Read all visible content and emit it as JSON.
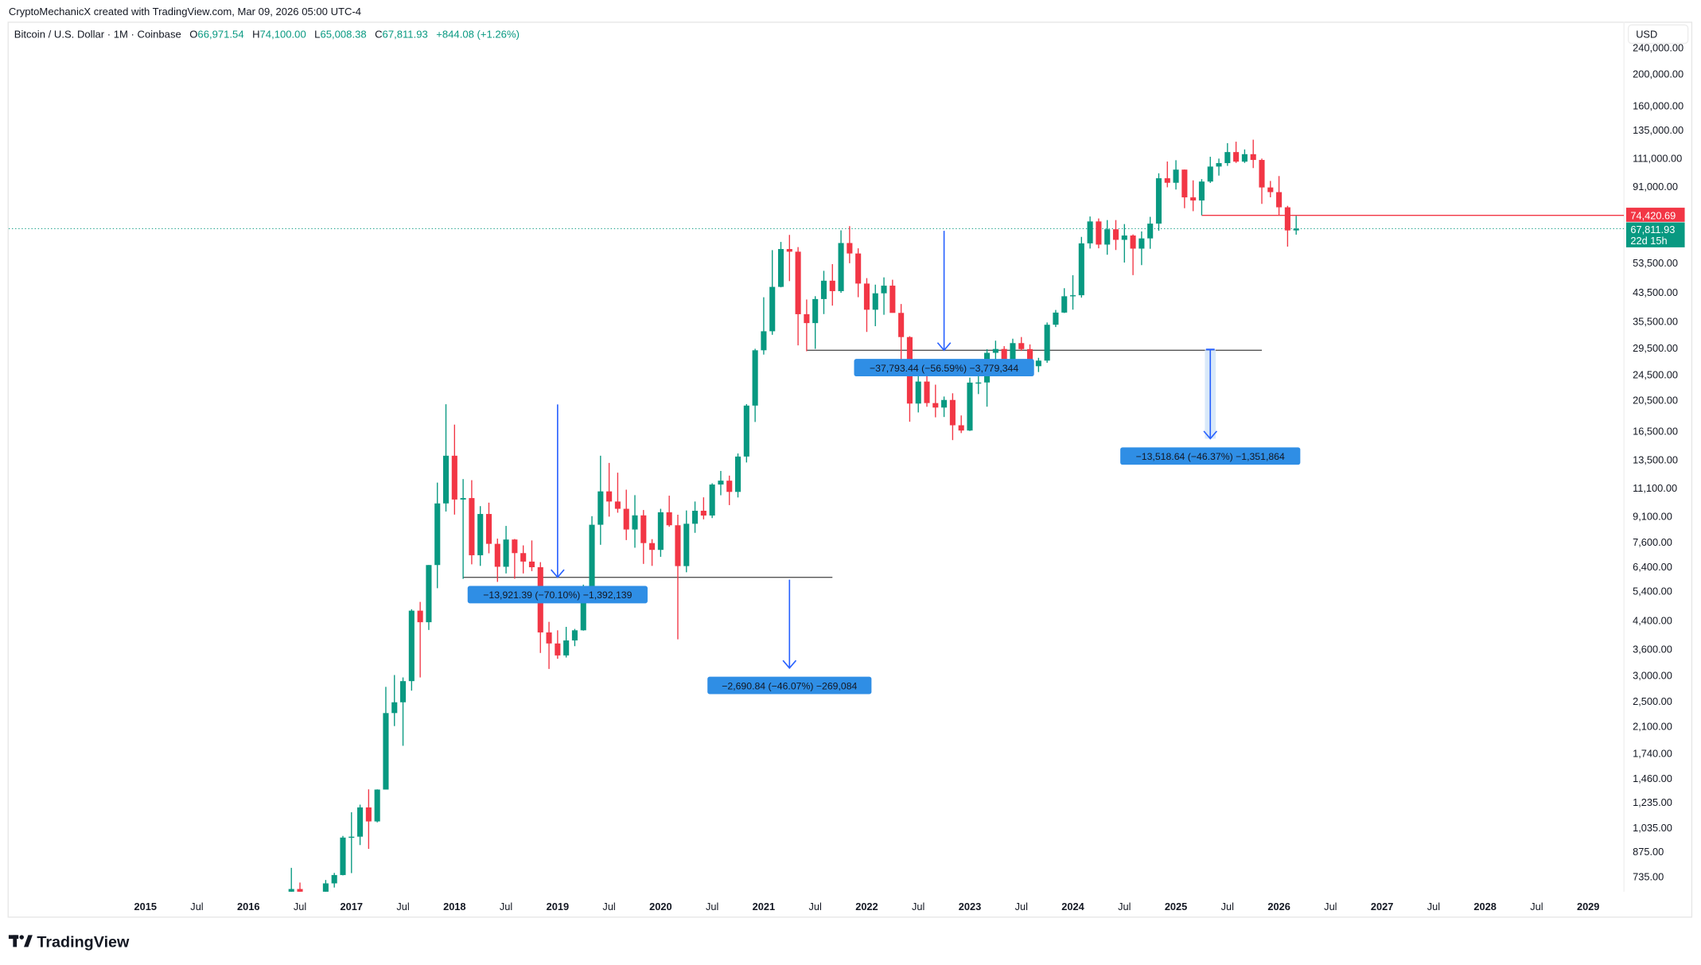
{
  "header": {
    "credit": "CryptoMechanicX created with TradingView.com, Mar 09, 2026 05:00 UTC-4",
    "symbol": "Bitcoin / U.S. Dollar · 1M · Coinbase",
    "o_label": "O",
    "o_value": "66,971.54",
    "h_label": "H",
    "h_value": "74,100.00",
    "l_label": "L",
    "l_value": "65,008.38",
    "c_label": "C",
    "c_value": "67,811.93",
    "change": "+844.08 (+1.26%)"
  },
  "price_axis": {
    "currency": "USD",
    "marker_red": "74,420.69",
    "marker_green": "67,811.93",
    "countdown": "22d 15h"
  },
  "footer": {
    "logo": "TradingView"
  },
  "colors": {
    "up": "#089981",
    "down": "#F23645",
    "arrow": "#2962FF",
    "label_bg": "#2F8EE5",
    "band": "#CFE3F8"
  },
  "chart_data": {
    "type": "candlestick",
    "scale": "log",
    "interval": "1M",
    "start": "2016-01",
    "candles": [
      [
        430,
        462,
        350,
        368
      ],
      [
        368,
        448,
        365,
        437
      ],
      [
        437,
        440,
        394,
        416
      ],
      [
        416,
        467,
        412,
        448
      ],
      [
        448,
        554,
        437,
        531
      ],
      [
        531,
        780,
        525,
        673
      ],
      [
        673,
        704,
        468,
        624
      ],
      [
        624,
        626,
        530,
        575
      ],
      [
        575,
        628,
        570,
        609
      ],
      [
        609,
        717,
        604,
        700
      ],
      [
        700,
        753,
        680,
        742
      ],
      [
        742,
        975,
        740,
        964
      ],
      [
        964,
        1150,
        752,
        970
      ],
      [
        970,
        1213,
        915,
        1190
      ],
      [
        1190,
        1350,
        891,
        1079
      ],
      [
        1079,
        1350,
        1072,
        1348
      ],
      [
        1348,
        2763,
        1348,
        2300
      ],
      [
        2300,
        3000,
        2100,
        2480
      ],
      [
        2480,
        2950,
        1830,
        2875
      ],
      [
        2875,
        4750,
        2690,
        4703
      ],
      [
        4703,
        5000,
        2950,
        4338
      ],
      [
        4338,
        6470,
        4110,
        6468
      ],
      [
        6468,
        11500,
        5500,
        9947
      ],
      [
        9947,
        19891,
        9400,
        13880
      ],
      [
        13880,
        17250,
        9200,
        10221
      ],
      [
        10221,
        11790,
        5873,
        10325
      ],
      [
        10325,
        11700,
        6500,
        6926
      ],
      [
        6926,
        9760,
        6430,
        9240
      ],
      [
        9240,
        10000,
        7020,
        7500
      ],
      [
        7500,
        7780,
        5750,
        6390
      ],
      [
        6390,
        8500,
        6100,
        7730
      ],
      [
        7730,
        7760,
        5880,
        7030
      ],
      [
        7030,
        7420,
        6100,
        6626
      ],
      [
        6626,
        7680,
        6200,
        6370
      ],
      [
        6370,
        6600,
        3500,
        4040
      ],
      [
        4040,
        4350,
        3130,
        3740
      ],
      [
        3740,
        4100,
        3360,
        3440
      ],
      [
        3440,
        4200,
        3390,
        3820
      ],
      [
        3820,
        4140,
        3670,
        4100
      ],
      [
        4100,
        5640,
        4090,
        5330
      ],
      [
        5330,
        9100,
        5320,
        8570
      ],
      [
        8570,
        13880,
        7450,
        10820
      ],
      [
        10820,
        13200,
        9070,
        10080
      ],
      [
        10080,
        12330,
        9320,
        9580
      ],
      [
        9580,
        10950,
        7700,
        8290
      ],
      [
        8290,
        10540,
        7300,
        9150
      ],
      [
        9150,
        9500,
        6520,
        7540
      ],
      [
        7540,
        7750,
        6430,
        7190
      ],
      [
        7190,
        9580,
        6850,
        9350
      ],
      [
        9350,
        10500,
        8450,
        8540
      ],
      [
        8540,
        9190,
        3850,
        6420
      ],
      [
        6420,
        9470,
        6150,
        8630
      ],
      [
        8630,
        10080,
        8100,
        9450
      ],
      [
        9450,
        10380,
        8900,
        9140
      ],
      [
        9140,
        11450,
        8980,
        11350
      ],
      [
        11350,
        12480,
        10530,
        11660
      ],
      [
        11660,
        12080,
        9830,
        10780
      ],
      [
        10780,
        14100,
        10370,
        13800
      ],
      [
        13800,
        19900,
        13240,
        19700
      ],
      [
        19700,
        29300,
        17570,
        28990
      ],
      [
        28990,
        41990,
        28130,
        33110
      ],
      [
        33110,
        58350,
        32300,
        45140
      ],
      [
        45140,
        61790,
        45000,
        58800
      ],
      [
        58800,
        64900,
        47000,
        57720
      ],
      [
        57720,
        59600,
        30000,
        37300
      ],
      [
        37300,
        41330,
        28800,
        35050
      ],
      [
        35050,
        42300,
        29280,
        41460
      ],
      [
        41460,
        50500,
        37330,
        47130
      ],
      [
        47130,
        52920,
        39600,
        43820
      ],
      [
        43820,
        67000,
        43300,
        61320
      ],
      [
        61320,
        69000,
        53250,
        57000
      ],
      [
        57000,
        59100,
        42000,
        46200
      ],
      [
        46200,
        47990,
        32950,
        38480
      ],
      [
        38480,
        45850,
        34300,
        43160
      ],
      [
        43160,
        48240,
        37150,
        45530
      ],
      [
        45530,
        47450,
        37700,
        37640
      ],
      [
        37640,
        40050,
        26700,
        31790
      ],
      [
        31790,
        31980,
        17600,
        19980
      ],
      [
        19980,
        24670,
        18780,
        23300
      ],
      [
        23300,
        25200,
        19540,
        20050
      ],
      [
        20050,
        22800,
        18150,
        19430
      ],
      [
        19430,
        20990,
        18190,
        20490
      ],
      [
        20490,
        21470,
        15480,
        17170
      ],
      [
        17170,
        18390,
        16260,
        16550
      ],
      [
        16550,
        23960,
        16500,
        23130
      ],
      [
        23130,
        25250,
        21350,
        23150
      ],
      [
        23150,
        29200,
        19550,
        28480
      ],
      [
        28480,
        31000,
        26940,
        29250
      ],
      [
        29250,
        29840,
        25810,
        27220
      ],
      [
        27220,
        31430,
        24750,
        30480
      ],
      [
        30480,
        31800,
        28850,
        29230
      ],
      [
        29230,
        30200,
        25170,
        25940
      ],
      [
        25940,
        27500,
        24900,
        26970
      ],
      [
        26970,
        35200,
        26560,
        34650
      ],
      [
        34650,
        38420,
        34100,
        37720
      ],
      [
        37720,
        44730,
        37610,
        42280
      ],
      [
        42280,
        48970,
        38500,
        42580
      ],
      [
        42580,
        64000,
        41880,
        61170
      ],
      [
        61170,
        73800,
        59000,
        71300
      ],
      [
        71300,
        72800,
        59100,
        60650
      ],
      [
        60650,
        71980,
        56500,
        67500
      ],
      [
        67500,
        71980,
        58400,
        62700
      ],
      [
        62700,
        70000,
        53500,
        64620
      ],
      [
        64620,
        65100,
        49000,
        58970
      ],
      [
        58970,
        66500,
        52550,
        63330
      ],
      [
        63330,
        73620,
        58900,
        70220
      ],
      [
        70220,
        99800,
        66800,
        96400
      ],
      [
        96400,
        108350,
        90500,
        93400
      ],
      [
        93400,
        109350,
        89100,
        102400
      ],
      [
        102400,
        102500,
        78200,
        84350
      ],
      [
        84350,
        95000,
        76600,
        82550
      ],
      [
        82550,
        95800,
        74420.69,
        94200
      ],
      [
        94200,
        112000,
        93300,
        104600
      ],
      [
        104600,
        110600,
        98200,
        107150
      ],
      [
        107150,
        123200,
        105100,
        115750
      ],
      [
        115750,
        124450,
        107300,
        108250
      ],
      [
        108250,
        117900,
        107300,
        114050
      ],
      [
        114050,
        126200,
        103500,
        109550
      ],
      [
        109550,
        110600,
        80600,
        90400
      ],
      [
        90400,
        94600,
        84400,
        87500
      ],
      [
        87500,
        97900,
        74500,
        78700
      ],
      [
        78700,
        79500,
        59800,
        66971.54
      ],
      [
        66971.54,
        74100,
        65008.38,
        67811.93
      ]
    ],
    "y_ticks": [
      "240,000.00",
      "200,000.00",
      "160,000.00",
      "135,000.00",
      "111,000.00",
      "91,000.00",
      "53,500.00",
      "43,500.00",
      "35,500.00",
      "29,500.00",
      "24,500.00",
      "20,500.00",
      "16,500.00",
      "13,500.00",
      "11,100.00",
      "9,100.00",
      "7,600.00",
      "6,400.00",
      "5,400.00",
      "4,400.00",
      "3,600.00",
      "3,000.00",
      "2,500.00",
      "2,100.00",
      "1,740.00",
      "1,460.00",
      "1,235.00",
      "1,035.00",
      "875.00",
      "735.00"
    ],
    "x_ticks": [
      {
        "label": "2015",
        "date": "2015-01"
      },
      {
        "label": "Jul",
        "date": "2015-07"
      },
      {
        "label": "2016",
        "date": "2016-01"
      },
      {
        "label": "Jul",
        "date": "2016-07"
      },
      {
        "label": "2017",
        "date": "2017-01"
      },
      {
        "label": "Jul",
        "date": "2017-07"
      },
      {
        "label": "2018",
        "date": "2018-01"
      },
      {
        "label": "Jul",
        "date": "2018-07"
      },
      {
        "label": "2019",
        "date": "2019-01"
      },
      {
        "label": "Jul",
        "date": "2019-07"
      },
      {
        "label": "2020",
        "date": "2020-01"
      },
      {
        "label": "Jul",
        "date": "2020-07"
      },
      {
        "label": "2021",
        "date": "2021-01"
      },
      {
        "label": "Jul",
        "date": "2021-07"
      },
      {
        "label": "2022",
        "date": "2022-01"
      },
      {
        "label": "Jul",
        "date": "2022-07"
      },
      {
        "label": "2023",
        "date": "2023-01"
      },
      {
        "label": "Jul",
        "date": "2023-07"
      },
      {
        "label": "2024",
        "date": "2024-01"
      },
      {
        "label": "Jul",
        "date": "2024-07"
      },
      {
        "label": "2025",
        "date": "2025-01"
      },
      {
        "label": "Jul",
        "date": "2025-07"
      },
      {
        "label": "2026",
        "date": "2026-01"
      },
      {
        "label": "Jul",
        "date": "2026-07"
      },
      {
        "label": "2027",
        "date": "2027-01"
      },
      {
        "label": "Jul",
        "date": "2027-07"
      },
      {
        "label": "2028",
        "date": "2028-01"
      },
      {
        "label": "Jul",
        "date": "2028-07"
      },
      {
        "label": "2029",
        "date": "2029-01"
      }
    ],
    "horizontal_lines": [
      {
        "start": "2018-02",
        "end": "2021-09",
        "price": 5938,
        "color": "#555555"
      },
      {
        "start": "2021-06",
        "end": "2025-11",
        "price": 28993,
        "color": "#555555"
      }
    ],
    "support_line": {
      "start": "2025-04",
      "price": 74420.69
    },
    "current_price": 67811.93,
    "measurements": [
      {
        "date": "2019-01",
        "from": 19860,
        "to": 5938,
        "label": "−13,921.39 (−70.10%) −1,392,139",
        "band": false
      },
      {
        "date": "2021-04",
        "from": 5841,
        "to": 3150,
        "label": "−2,690.84 (−46.07%) −269,084",
        "band": false
      },
      {
        "date": "2022-10",
        "from": 66786,
        "to": 28993,
        "label": "−37,793.44 (−56.59%) −3,779,344",
        "band": false
      },
      {
        "date": "2025-05",
        "from": 29153,
        "to": 15635,
        "label": "−13,518.64 (−46.37%) −1,351,864",
        "band": true
      }
    ]
  }
}
